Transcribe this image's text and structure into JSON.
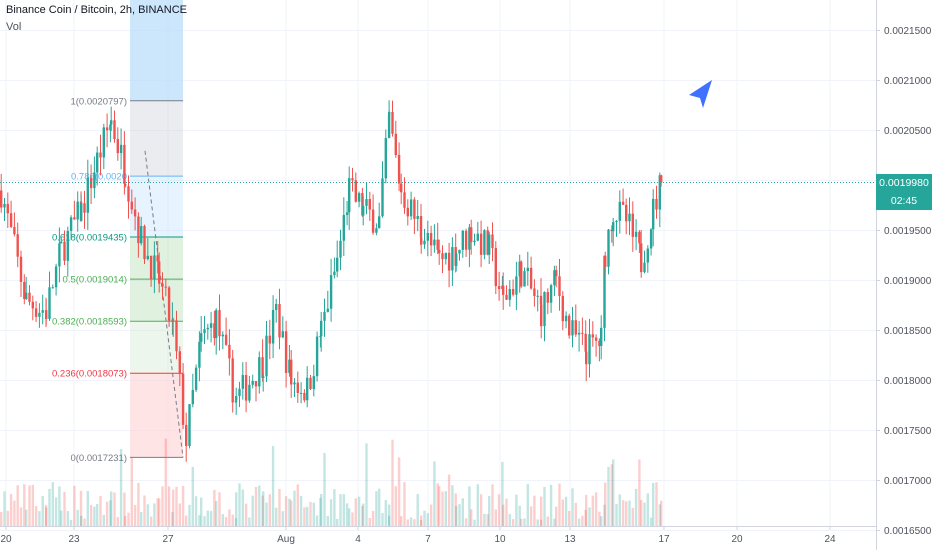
{
  "header": {
    "symbol_line": "Binance Coin / Bitcoin, 2h, BINANCE",
    "vol_label": "Vol"
  },
  "price_axis": {
    "ticks": [
      "0.0021500",
      "0.0021000",
      "0.0020500",
      "0.0020000",
      "0.0019500",
      "0.0019000",
      "0.0018500",
      "0.0018000",
      "0.0017500",
      "0.0017000",
      "0.0016500"
    ],
    "current_price": "0.0019980",
    "countdown": "02:45"
  },
  "time_axis": {
    "ticks": [
      "20",
      "23",
      "27",
      "Aug",
      "4",
      "7",
      "10",
      "13",
      "17",
      "20",
      "24"
    ]
  },
  "fib_levels": [
    {
      "label": "1(0.0020797)",
      "value": 0.0020797,
      "color": "#787b86"
    },
    {
      "label": "0.786(0.0020",
      "value": 0.0020044,
      "color": "#64b5f6"
    },
    {
      "label": "0.618(0.0019435)",
      "value": 0.0019435,
      "color": "#089981"
    },
    {
      "label": "0.5(0.0019014)",
      "value": 0.0019014,
      "color": "#4caf50"
    },
    {
      "label": "0.382(0.0018593)",
      "value": 0.0018593,
      "color": "#4caf50"
    },
    {
      "label": "0.236(0.0018073)",
      "value": 0.0018073,
      "color": "#f23645"
    },
    {
      "label": "0(0.0017231)",
      "value": 0.0017231,
      "color": "#787b86"
    }
  ],
  "colors": {
    "up": "#26a69a",
    "down": "#ef5350",
    "grid": "#f0f3fa",
    "price_line": "#26a69a",
    "cursor": "#2962ff"
  },
  "icons": {
    "cursor": "navigation-arrow-icon"
  },
  "chart_data": {
    "type": "candlestick",
    "title": "Binance Coin / Bitcoin, 2h, BINANCE",
    "ylim": [
      0.00163,
      0.00219
    ],
    "grid": true,
    "last_close": 0.001998,
    "anchors": [
      [
        0,
        0.00199
      ],
      [
        25,
        0.00188
      ],
      [
        45,
        0.00187
      ],
      [
        60,
        0.00193
      ],
      [
        80,
        0.00197
      ],
      [
        96,
        0.00202
      ],
      [
        110,
        0.00206
      ],
      [
        124,
        0.00201
      ],
      [
        140,
        0.00194
      ],
      [
        158,
        0.0019
      ],
      [
        172,
        0.00185
      ],
      [
        185,
        0.00174
      ],
      [
        200,
        0.00184
      ],
      [
        215,
        0.00186
      ],
      [
        235,
        0.00178
      ],
      [
        262,
        0.00182
      ],
      [
        275,
        0.00187
      ],
      [
        290,
        0.0018
      ],
      [
        306,
        0.00179
      ],
      [
        320,
        0.00185
      ],
      [
        336,
        0.00192
      ],
      [
        348,
        0.00199
      ],
      [
        362,
        0.00197
      ],
      [
        378,
        0.00196
      ],
      [
        388,
        0.00206
      ],
      [
        400,
        0.00199
      ],
      [
        420,
        0.00195
      ],
      [
        438,
        0.00192
      ],
      [
        455,
        0.00193
      ],
      [
        470,
        0.00195
      ],
      [
        488,
        0.00193
      ],
      [
        502,
        0.00188
      ],
      [
        520,
        0.00191
      ],
      [
        540,
        0.00187
      ],
      [
        555,
        0.0019
      ],
      [
        568,
        0.00185
      ],
      [
        585,
        0.00183
      ],
      [
        600,
        0.00184
      ],
      [
        604,
        0.00193
      ],
      [
        612,
        0.00197
      ],
      [
        625,
        0.00196
      ],
      [
        640,
        0.00192
      ],
      [
        652,
        0.00197
      ],
      [
        660,
        0.001998
      ]
    ]
  }
}
